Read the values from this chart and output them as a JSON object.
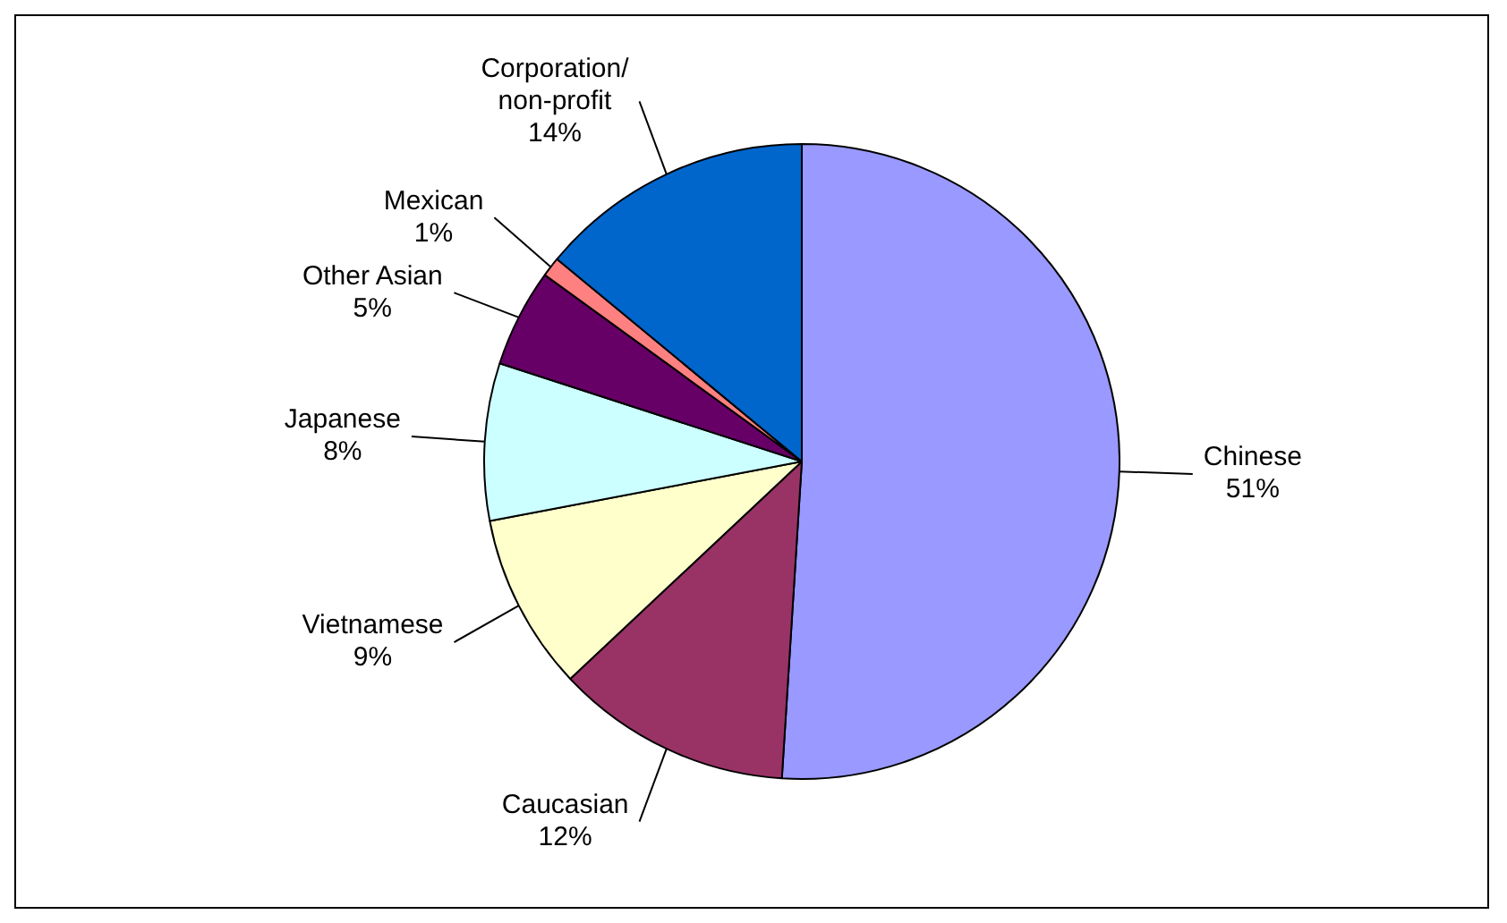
{
  "chart_data": {
    "type": "pie",
    "categories": [
      "Chinese",
      "Caucasian",
      "Vietnamese",
      "Japanese",
      "Other Asian",
      "Mexican",
      "Corporation/ non-profit"
    ],
    "values": [
      51,
      12,
      9,
      8,
      5,
      1,
      14
    ],
    "value_labels": [
      "51%",
      "12%",
      "9%",
      "8%",
      "5%",
      "1%",
      "14%"
    ],
    "colors": [
      "#9999ff",
      "#993366",
      "#ffffcc",
      "#ccffff",
      "#660066",
      "#ff8080",
      "#0066cc"
    ],
    "legend": false
  }
}
